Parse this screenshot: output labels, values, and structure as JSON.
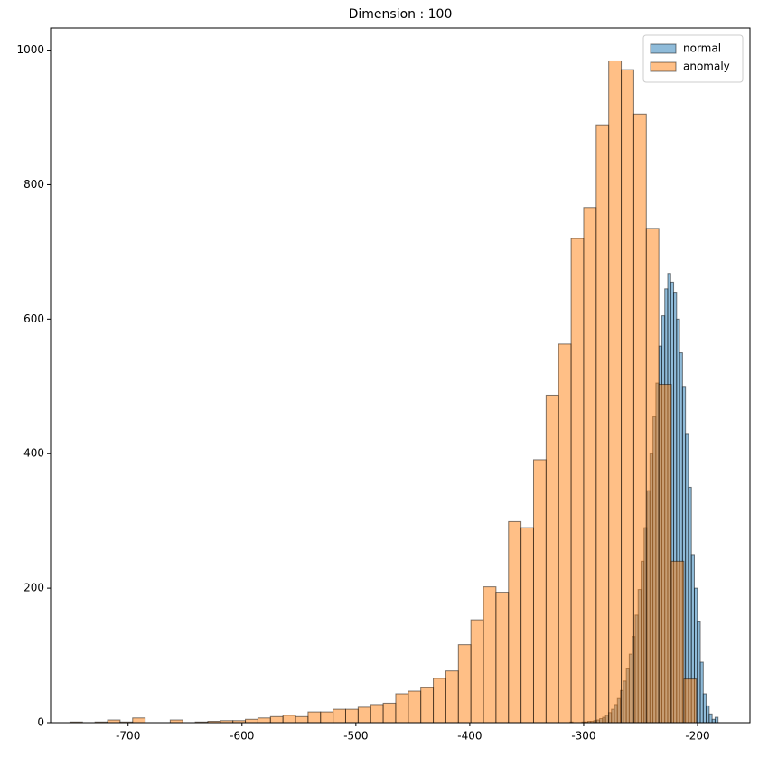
{
  "chart_data": {
    "type": "histogram",
    "title": "Dimension : 100",
    "xlim": [
      -768,
      -154
    ],
    "ylim": [
      0,
      1033
    ],
    "xticks": [
      -700,
      -600,
      -500,
      -400,
      -300,
      -200
    ],
    "yticks": [
      0,
      200,
      400,
      600,
      800,
      1000
    ],
    "legend": "upper right",
    "series": [
      {
        "name": "normal",
        "color": "#1f77b4",
        "bins": [
          -312,
          -309.4,
          -306.8,
          -304.2,
          -301.6,
          -299,
          -296.4,
          -293.8,
          -291.2,
          -288.6,
          -286,
          -283.4,
          -280.8,
          -278.2,
          -275.6,
          -273,
          -270.4,
          -267.8,
          -265.2,
          -262.6,
          -260,
          -257.4,
          -254.8,
          -252.2,
          -249.6,
          -247,
          -244.4,
          -241.8,
          -239.2,
          -236.6,
          -234,
          -231.4,
          -228.8,
          -226.2,
          -223.6,
          -221,
          -218.4,
          -215.8,
          -213.2,
          -210.6,
          -208,
          -205.4,
          -202.8,
          -200.2,
          -197.6,
          -195,
          -192.4,
          -189.8,
          -187.2,
          -184.6,
          -182
        ],
        "values": [
          1,
          0,
          0,
          0,
          1,
          1,
          2,
          2,
          3,
          4,
          6,
          8,
          11,
          15,
          20,
          27,
          36,
          48,
          62,
          80,
          102,
          128,
          160,
          198,
          240,
          290,
          345,
          400,
          455,
          505,
          560,
          605,
          645,
          668,
          655,
          640,
          600,
          550,
          500,
          430,
          350,
          250,
          200,
          150,
          90,
          43,
          25,
          13,
          5,
          8
        ]
      },
      {
        "name": "anomaly",
        "color": "#ff7f0e",
        "bins": [
          -751,
          -740,
          -729,
          -718,
          -707,
          -696,
          -685,
          -674,
          -663,
          -652,
          -641,
          -630,
          -619,
          -608,
          -597,
          -586,
          -575,
          -564,
          -553,
          -542,
          -531,
          -520,
          -509,
          -498,
          -487,
          -476,
          -465,
          -454,
          -443,
          -432,
          -421,
          -410,
          -399,
          -388,
          -377,
          -366,
          -355,
          -344,
          -333,
          -322,
          -311,
          -300,
          -289,
          -278,
          -267,
          -256,
          -245,
          -234,
          -223,
          -212,
          -201
        ],
        "values": [
          1,
          0,
          1,
          4,
          1,
          7,
          0,
          0,
          4,
          0,
          1,
          2,
          3,
          3,
          5,
          7,
          9,
          11,
          9,
          16,
          16,
          20,
          20,
          23,
          27,
          29,
          43,
          47,
          52,
          66,
          77,
          116,
          153,
          202,
          194,
          299,
          290,
          391,
          487,
          563,
          720,
          766,
          889,
          984,
          971,
          905,
          735,
          503,
          240,
          65
        ]
      }
    ]
  }
}
